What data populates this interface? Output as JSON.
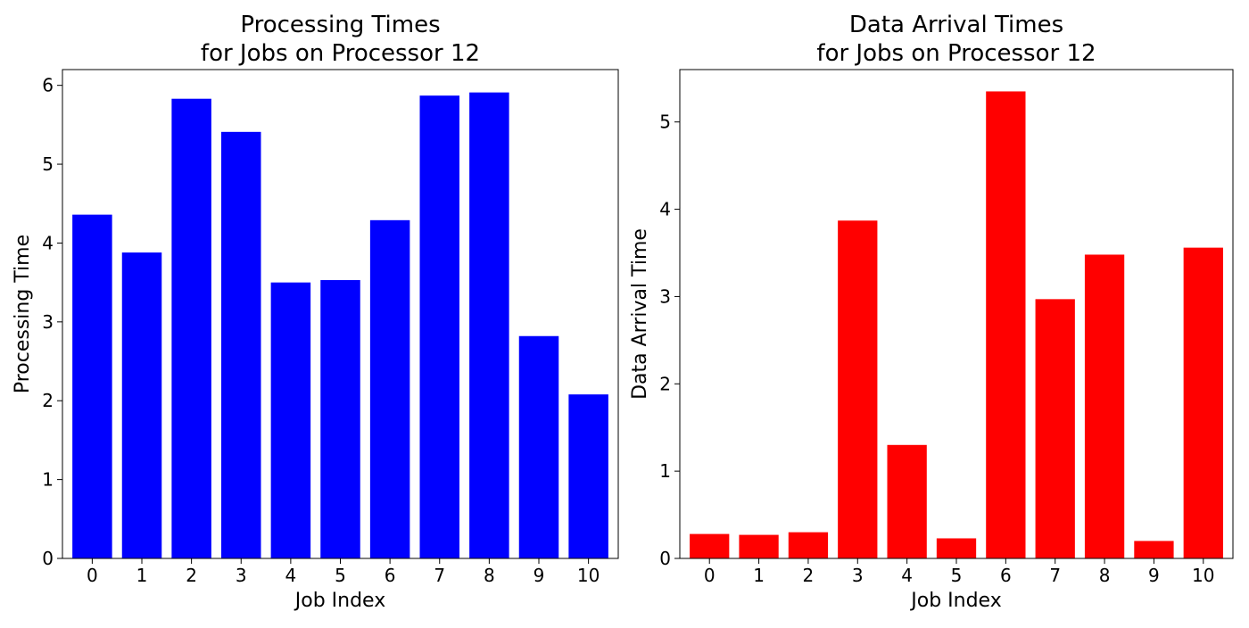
{
  "chart_data": [
    {
      "type": "bar",
      "title": [
        "Processing Times",
        "for Jobs on Processor 12"
      ],
      "xlabel": "Job Index",
      "ylabel": "Processing Time",
      "categories": [
        "0",
        "1",
        "2",
        "3",
        "4",
        "5",
        "6",
        "7",
        "8",
        "9",
        "10"
      ],
      "values": [
        4.36,
        3.88,
        5.83,
        5.41,
        3.5,
        3.53,
        4.29,
        5.87,
        5.91,
        2.82,
        2.08
      ],
      "color": "#0000ff",
      "ylim": [
        0,
        6.2
      ],
      "yticks": [
        0,
        1,
        2,
        3,
        4,
        5,
        6
      ],
      "grid": false,
      "legend": "none"
    },
    {
      "type": "bar",
      "title": [
        "Data Arrival Times",
        "for Jobs on Processor 12"
      ],
      "xlabel": "Job Index",
      "ylabel": "Data Arrival Time",
      "categories": [
        "0",
        "1",
        "2",
        "3",
        "4",
        "5",
        "6",
        "7",
        "8",
        "9",
        "10"
      ],
      "values": [
        0.28,
        0.27,
        0.3,
        3.87,
        1.3,
        0.23,
        5.35,
        2.97,
        3.48,
        0.2,
        3.56
      ],
      "color": "#ff0000",
      "ylim": [
        0,
        5.6
      ],
      "yticks": [
        0,
        1,
        2,
        3,
        4,
        5
      ],
      "grid": false,
      "legend": "none"
    }
  ]
}
